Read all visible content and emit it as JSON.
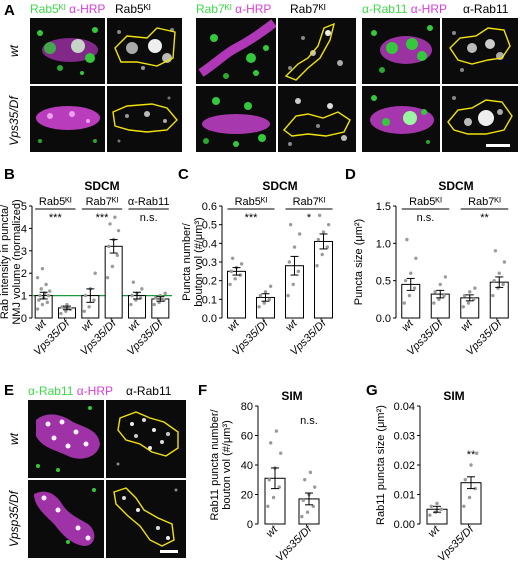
{
  "panels": {
    "A": {
      "letter": "A",
      "groups": [
        {
          "green": "Rab5ᴷᴵ",
          "magenta": "α-HRP",
          "gray": "Rab5ᴷᴵ"
        },
        {
          "green": "Rab7ᴷᴵ",
          "magenta": "α-HRP",
          "gray": "Rab7ᴷᴵ"
        },
        {
          "green": "α-Rab11",
          "magenta": "α-HRP",
          "gray": "α-Rab11"
        }
      ],
      "rows": [
        "wt",
        "Vps35/Df"
      ]
    },
    "B": {
      "letter": "B",
      "method": "SDCM",
      "groups": [
        "Rab5ᴷᴵ",
        "Rab7ᴷᴵ",
        "α-Rab11"
      ],
      "sig": [
        "***",
        "***",
        "n.s."
      ],
      "xticks": [
        "wt",
        "Vps35/Df",
        "wt",
        "Vps35/Df",
        "wt",
        "Vps35/Df"
      ],
      "ylabel": "Rab intensity in puncta/ NMJ volume (normalized)",
      "yticks": [
        "0",
        "1",
        "2",
        "3",
        "4",
        "5"
      ]
    },
    "C": {
      "letter": "C",
      "method": "SDCM",
      "groups": [
        "Rab5ᴷᴵ",
        "Rab7ᴷᴵ"
      ],
      "sig": [
        "***",
        "*"
      ],
      "xticks": [
        "wt",
        "Vps35/Df",
        "wt",
        "Vps35/Df"
      ],
      "ylabel": "Puncta number/ bouton vol (#/μm³)",
      "yticks": [
        "0.0",
        "0.1",
        "0.2",
        "0.3",
        "0.4",
        "0.5",
        "0.6"
      ]
    },
    "D": {
      "letter": "D",
      "method": "SDCM",
      "groups": [
        "Rab5ᴷᴵ",
        "Rab7ᴷᴵ"
      ],
      "sig": [
        "n.s.",
        "**"
      ],
      "xticks": [
        "wt",
        "Vps35/Df",
        "wt",
        "Vps35/Df"
      ],
      "ylabel": "Puncta size (μm²)",
      "yticks": [
        "0.0",
        "0.5",
        "1.0",
        "1.5"
      ]
    },
    "E": {
      "letter": "E",
      "green": "α-Rab11",
      "magenta": "α-HRP",
      "gray": "α-Rab11",
      "rows": [
        "wt",
        "Vpsp35/Df"
      ]
    },
    "F": {
      "letter": "F",
      "method": "SIM",
      "sig": "n.s.",
      "xticks": [
        "wt",
        "Vps35/Df"
      ],
      "ylabel": "Rab11 puncta number/ bouton vol (#/μm³)",
      "yticks": [
        "0",
        "20",
        "40",
        "60",
        "80"
      ]
    },
    "G": {
      "letter": "G",
      "method": "SIM",
      "sig": "**",
      "xticks": [
        "wt",
        "Vps35/Df"
      ],
      "ylabel": "Rab11 puncta size (μm²)",
      "yticks": [
        "0.00",
        "0.01",
        "0.02",
        "0.03",
        "0.04"
      ]
    }
  },
  "chart_data": [
    {
      "id": "B",
      "type": "bar",
      "categories": [
        "wt",
        "Vps35/Df",
        "wt",
        "Vps35/Df",
        "wt",
        "Vps35/Df"
      ],
      "groups": [
        "Rab5ᴷᴵ",
        "Rab5ᴷᴵ",
        "Rab7ᴷᴵ",
        "Rab7ᴷᴵ",
        "α-Rab11",
        "α-Rab11"
      ],
      "values": [
        1.0,
        0.45,
        1.0,
        3.2,
        1.0,
        0.85
      ],
      "errors": [
        0.15,
        0.08,
        0.3,
        0.3,
        0.15,
        0.1
      ],
      "ylim": [
        0,
        5
      ],
      "reference_line": 1.0,
      "points": [
        [
          0.4,
          0.6,
          0.7,
          0.8,
          0.9,
          1.0,
          1.0,
          1.1,
          1.2,
          1.3,
          1.5,
          1.8,
          2.2
        ],
        [
          0.2,
          0.3,
          0.4,
          0.5,
          0.6
        ],
        [
          0.3,
          0.5,
          0.8,
          1.0,
          1.3,
          2.0
        ],
        [
          1.8,
          2.3,
          2.8,
          3.2,
          3.5,
          3.9,
          4.2,
          4.5
        ],
        [
          0.6,
          0.8,
          0.9,
          1.0,
          1.1,
          1.3,
          1.6
        ],
        [
          0.6,
          0.7,
          0.8,
          0.9,
          1.0,
          1.1
        ]
      ]
    },
    {
      "id": "C",
      "type": "bar",
      "categories": [
        "wt",
        "Vps35/Df",
        "wt",
        "Vps35/Df"
      ],
      "groups": [
        "Rab5ᴷᴵ",
        "Rab5ᴷᴵ",
        "Rab7ᴷᴵ",
        "Rab7ᴷᴵ"
      ],
      "values": [
        0.25,
        0.11,
        0.28,
        0.41
      ],
      "errors": [
        0.02,
        0.02,
        0.05,
        0.04
      ],
      "ylim": [
        0,
        0.6
      ],
      "points": [
        [
          0.18,
          0.21,
          0.23,
          0.25,
          0.27,
          0.29,
          0.32
        ],
        [
          0.06,
          0.08,
          0.1,
          0.12,
          0.14,
          0.17
        ],
        [
          0.12,
          0.18,
          0.25,
          0.3,
          0.38,
          0.45,
          0.5
        ],
        [
          0.28,
          0.34,
          0.38,
          0.42,
          0.46,
          0.5,
          0.55
        ]
      ]
    },
    {
      "id": "D",
      "type": "bar",
      "categories": [
        "wt",
        "Vps35/Df",
        "wt",
        "Vps35/Df"
      ],
      "groups": [
        "Rab5ᴷᴵ",
        "Rab5ᴷᴵ",
        "Rab7ᴷᴵ",
        "Rab7ᴷᴵ"
      ],
      "values": [
        0.45,
        0.32,
        0.27,
        0.48
      ],
      "errors": [
        0.08,
        0.05,
        0.04,
        0.07
      ],
      "ylim": [
        0,
        1.5
      ],
      "points": [
        [
          0.2,
          0.3,
          0.4,
          0.5,
          0.6,
          0.8,
          1.05
        ],
        [
          0.2,
          0.25,
          0.3,
          0.35,
          0.45,
          0.55
        ],
        [
          0.15,
          0.2,
          0.25,
          0.3,
          0.35,
          0.4
        ],
        [
          0.3,
          0.4,
          0.45,
          0.5,
          0.6,
          0.75,
          0.9
        ]
      ]
    },
    {
      "id": "F",
      "type": "bar",
      "categories": [
        "wt",
        "Vps35/Df"
      ],
      "values": [
        31,
        17
      ],
      "errors": [
        7,
        4
      ],
      "ylim": [
        0,
        80
      ],
      "points": [
        [
          12,
          18,
          25,
          30,
          38,
          48,
          55,
          63
        ],
        [
          5,
          8,
          12,
          16,
          20,
          25,
          30,
          35
        ]
      ]
    },
    {
      "id": "G",
      "type": "bar",
      "categories": [
        "wt",
        "Vps35/Df"
      ],
      "values": [
        0.005,
        0.014
      ],
      "errors": [
        0.001,
        0.002
      ],
      "ylim": [
        0,
        0.04
      ],
      "points": [
        [
          0.003,
          0.004,
          0.005,
          0.006,
          0.007
        ],
        [
          0.006,
          0.009,
          0.012,
          0.015,
          0.02,
          0.024
        ]
      ]
    }
  ]
}
